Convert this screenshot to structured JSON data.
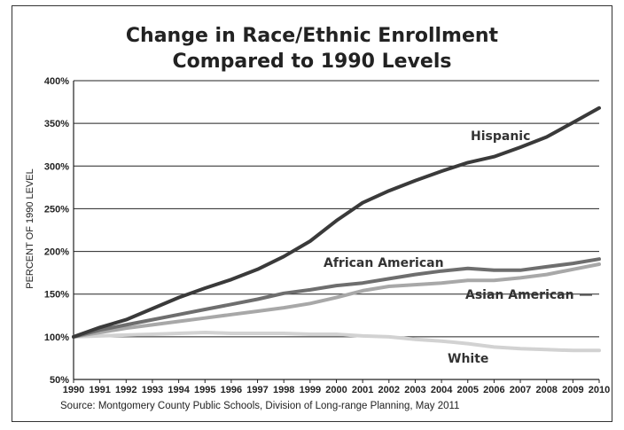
{
  "chart_data": {
    "type": "line",
    "title_line1": "Change in Race/Ethnic Enrollment",
    "title_line2": "Compared to 1990 Levels",
    "ylabel": "PERCENT OF 1990 LEVEL",
    "xlabel": "",
    "ylim": [
      50,
      400
    ],
    "yticks": [
      "50%",
      "100%",
      "150%",
      "200%",
      "250%",
      "300%",
      "350%",
      "400%"
    ],
    "ytick_values": [
      50,
      100,
      150,
      200,
      250,
      300,
      350,
      400
    ],
    "x": [
      "1990",
      "1991",
      "1992",
      "1993",
      "1994",
      "1995",
      "1996",
      "1997",
      "1998",
      "1999",
      "2000",
      "2001",
      "2002",
      "2003",
      "2004",
      "2005",
      "2006",
      "2007",
      "2008",
      "2009",
      "2010"
    ],
    "grid": "horizontal",
    "series": [
      {
        "name": "Hispanic",
        "color": "#3a3a3a",
        "values": [
          100,
          111,
          120,
          133,
          146,
          157,
          167,
          179,
          194,
          212,
          236,
          257,
          271,
          283,
          294,
          304,
          311,
          322,
          334,
          351,
          368
        ]
      },
      {
        "name": "African American",
        "color": "#6e6e6e",
        "values": [
          100,
          108,
          114,
          120,
          126,
          132,
          138,
          144,
          151,
          155,
          160,
          163,
          168,
          173,
          177,
          180,
          178,
          178,
          182,
          186,
          191
        ]
      },
      {
        "name": "Asian American",
        "color": "#a8a8a8",
        "values": [
          100,
          105,
          110,
          114,
          118,
          122,
          126,
          130,
          134,
          139,
          146,
          154,
          159,
          161,
          163,
          166,
          166,
          169,
          173,
          179,
          185
        ]
      },
      {
        "name": "White",
        "color": "#d2d2d2",
        "values": [
          100,
          101,
          102,
          103,
          104,
          105,
          104,
          104,
          104,
          103,
          103,
          101,
          100,
          97,
          95,
          92,
          88,
          86,
          85,
          84,
          84
        ]
      }
    ]
  },
  "source": "Source: Montgomery County Public Schools, Division of Long-range Planning, May 2011"
}
